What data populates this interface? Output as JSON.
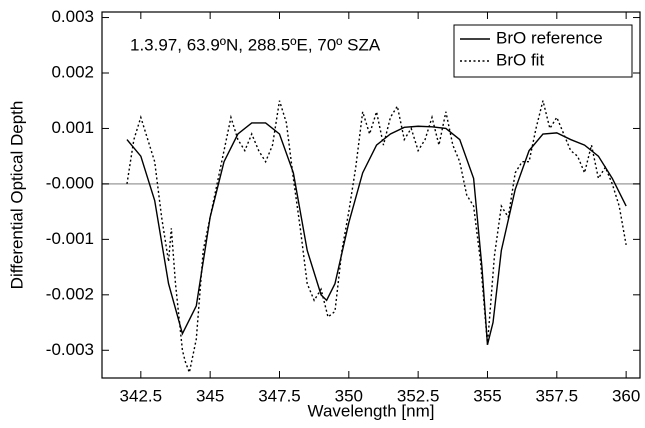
{
  "chart_data": {
    "type": "line",
    "annotation": "1.3.97, 63.9ºN, 288.5ºE, 70º SZA",
    "xlabel": "Wavelength [nm]",
    "ylabel": "Differential Optical Depth",
    "xlim": [
      341.1,
      360.5
    ],
    "ylim": [
      -0.0035,
      0.0031
    ],
    "xticks": [
      342.5,
      345,
      347.5,
      350,
      352.5,
      355,
      357.5,
      360
    ],
    "yticks": [
      0.003,
      0.002,
      0.001,
      {
        "value": 0,
        "label": "-0.000"
      },
      -0.001,
      -0.002,
      -0.003
    ],
    "zero_line": true,
    "legend": "upper right",
    "series": [
      {
        "name": "BrO reference",
        "color": "#000000",
        "dash": "solid",
        "x": [
          342.0,
          342.5,
          343.0,
          343.5,
          344.0,
          344.5,
          345.0,
          345.5,
          346.0,
          346.5,
          347.0,
          347.5,
          348.0,
          348.5,
          349.0,
          349.2,
          349.5,
          350.0,
          350.5,
          351.0,
          351.5,
          352.0,
          352.5,
          353.0,
          353.5,
          354.0,
          354.5,
          354.8,
          355.0,
          355.2,
          355.5,
          356.0,
          356.5,
          357.0,
          357.5,
          358.0,
          358.5,
          359.0,
          359.5,
          360.0
        ],
        "values": [
          0.0008,
          0.0005,
          -0.0003,
          -0.0018,
          -0.0027,
          -0.0022,
          -0.0006,
          0.0004,
          0.0009,
          0.0011,
          0.0011,
          0.0009,
          0.0002,
          -0.0012,
          -0.002,
          -0.0021,
          -0.0018,
          -0.0007,
          0.0002,
          0.0007,
          0.0009,
          0.00102,
          0.00104,
          0.00103,
          0.001,
          0.0008,
          0.0001,
          -0.0015,
          -0.0029,
          -0.0025,
          -0.0012,
          -0.0001,
          0.0006,
          0.0009,
          0.00092,
          0.0008,
          0.0007,
          0.0005,
          0.0001,
          -0.0004
        ]
      },
      {
        "name": "BrO fit",
        "color": "#000000",
        "dash": "dotted",
        "x": [
          342.0,
          342.25,
          342.5,
          342.75,
          343.0,
          343.25,
          343.5,
          343.6,
          343.75,
          344.0,
          344.1,
          344.25,
          344.5,
          344.75,
          345.0,
          345.25,
          345.5,
          345.75,
          346.0,
          346.25,
          346.5,
          346.75,
          347.0,
          347.25,
          347.5,
          347.75,
          348.0,
          348.25,
          348.5,
          348.75,
          349.0,
          349.25,
          349.5,
          349.75,
          350.0,
          350.25,
          350.5,
          350.75,
          351.0,
          351.25,
          351.5,
          351.75,
          352.0,
          352.25,
          352.5,
          352.75,
          353.0,
          353.25,
          353.5,
          353.75,
          354.0,
          354.25,
          354.5,
          354.75,
          355.0,
          355.25,
          355.5,
          355.75,
          356.0,
          356.25,
          356.5,
          356.75,
          357.0,
          357.25,
          357.5,
          357.75,
          358.0,
          358.25,
          358.5,
          358.75,
          359.0,
          359.25,
          359.5,
          359.75,
          360.0
        ],
        "values": [
          0.0,
          0.0008,
          0.0012,
          0.0008,
          0.0004,
          -0.0006,
          -0.0014,
          -0.0008,
          -0.0018,
          -0.003,
          -0.0032,
          -0.0034,
          -0.0028,
          -0.0012,
          -0.0006,
          0.0,
          0.0006,
          0.0012,
          0.0008,
          0.0006,
          0.0009,
          0.0006,
          0.0004,
          0.0007,
          0.0015,
          0.0011,
          0.0001,
          -0.0008,
          -0.0018,
          -0.0021,
          -0.0019,
          -0.0024,
          -0.0023,
          -0.0012,
          -0.0005,
          0.0003,
          0.0013,
          0.0009,
          0.0013,
          0.0007,
          0.0012,
          0.0014,
          0.0008,
          0.001,
          0.0006,
          0.0008,
          0.0012,
          0.0007,
          0.0013,
          0.0007,
          0.0004,
          -0.0002,
          -0.0004,
          -0.0014,
          -0.0029,
          -0.0013,
          -0.0004,
          -0.0006,
          0.0002,
          0.0004,
          0.0004,
          0.001,
          0.0015,
          0.001,
          0.0012,
          0.0009,
          0.0006,
          0.0005,
          0.0002,
          0.0007,
          0.0001,
          0.0003,
          0.0,
          -0.0004,
          -0.0011
        ]
      }
    ]
  }
}
